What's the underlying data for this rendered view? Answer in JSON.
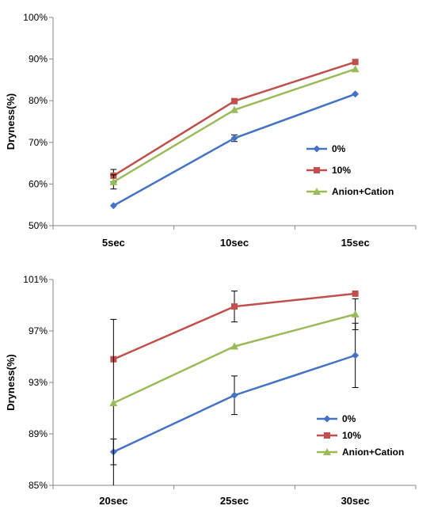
{
  "chart_data": [
    {
      "type": "line",
      "ylabel": "Dryness(%)",
      "ylim": [
        50,
        100
      ],
      "ytick_step": 10,
      "ytick_format": "percent",
      "categories": [
        "5sec",
        "10sec",
        "15sec"
      ],
      "series": [
        {
          "name": "0%",
          "color": "#4472C4",
          "marker": "diamond",
          "values": [
            54.8,
            71.0,
            81.6
          ],
          "errors": [
            0,
            0.8,
            0
          ]
        },
        {
          "name": "10%",
          "color": "#C0504D",
          "marker": "square",
          "values": [
            62.0,
            79.9,
            89.3
          ],
          "errors": [
            1.5,
            0,
            0
          ]
        },
        {
          "name": "Anion+Cation",
          "color": "#9BBB59",
          "marker": "triangle",
          "values": [
            60.5,
            77.8,
            87.6
          ],
          "errors": [
            1.7,
            0,
            0
          ]
        }
      ],
      "legend": "right-middle",
      "grid": false
    },
    {
      "type": "line",
      "ylabel": "Dryness(%)",
      "ylim": [
        85,
        101
      ],
      "ytick_step": 4,
      "ytick_format": "percent",
      "categories": [
        "20sec",
        "25sec",
        "30sec"
      ],
      "series": [
        {
          "name": "0%",
          "color": "#4472C4",
          "marker": "diamond",
          "values": [
            87.6,
            92.0,
            95.1
          ],
          "errors": [
            1.0,
            1.5,
            2.5
          ]
        },
        {
          "name": "10%",
          "color": "#C0504D",
          "marker": "square",
          "values": [
            94.8,
            98.9,
            99.9
          ],
          "errors": [
            0,
            1.2,
            0
          ]
        },
        {
          "name": "Anion+Cation",
          "color": "#9BBB59",
          "marker": "triangle",
          "values": [
            91.4,
            95.8,
            98.3
          ],
          "errors": [
            6.5,
            0,
            1.2
          ]
        }
      ],
      "legend": "bottom-right",
      "grid": false
    }
  ]
}
